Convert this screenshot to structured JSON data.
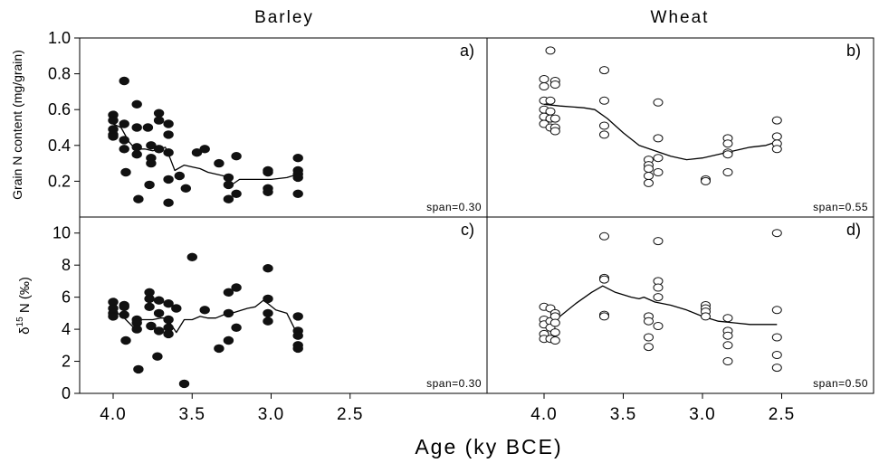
{
  "figure": {
    "x_axis_label": "Age (ky BCE)",
    "columns": [
      "Barley",
      "Wheat"
    ],
    "row_ylabels": [
      "Grain N content (mg/grain)",
      "δ15 N (‰)"
    ],
    "colors": {
      "ink": "#000000",
      "background": "#ffffff"
    }
  },
  "chart_data": [
    {
      "panel": "a)",
      "type": "scatter",
      "crop": "Barley",
      "marker": "filled",
      "span": "span=0.30",
      "xlabel": "Age (ky BCE)",
      "ylabel": "Grain N content (mg/grain)",
      "xlim": [
        4.2,
        2.45
      ],
      "ylim": [
        0,
        1.0
      ],
      "x_reversed": true,
      "yticks": [
        "0.2",
        "0.4",
        "0.6",
        "0.8",
        "1.0"
      ],
      "xticks": [
        "4.0",
        "3.5",
        "3.0",
        "2.5"
      ],
      "points": [
        [
          4.0,
          0.57
        ],
        [
          4.0,
          0.54
        ],
        [
          4.0,
          0.49
        ],
        [
          4.0,
          0.46
        ],
        [
          4.0,
          0.45
        ],
        [
          3.93,
          0.76
        ],
        [
          3.93,
          0.52
        ],
        [
          3.93,
          0.43
        ],
        [
          3.93,
          0.38
        ],
        [
          3.92,
          0.25
        ],
        [
          3.85,
          0.63
        ],
        [
          3.85,
          0.5
        ],
        [
          3.85,
          0.39
        ],
        [
          3.85,
          0.35
        ],
        [
          3.84,
          0.1
        ],
        [
          3.78,
          0.5
        ],
        [
          3.76,
          0.4
        ],
        [
          3.76,
          0.33
        ],
        [
          3.76,
          0.3
        ],
        [
          3.77,
          0.18
        ],
        [
          3.71,
          0.58
        ],
        [
          3.71,
          0.54
        ],
        [
          3.71,
          0.38
        ],
        [
          3.65,
          0.52
        ],
        [
          3.65,
          0.46
        ],
        [
          3.65,
          0.36
        ],
        [
          3.65,
          0.21
        ],
        [
          3.65,
          0.08
        ],
        [
          3.58,
          0.23
        ],
        [
          3.54,
          0.16
        ],
        [
          3.47,
          0.36
        ],
        [
          3.42,
          0.38
        ],
        [
          3.33,
          0.3
        ],
        [
          3.27,
          0.22
        ],
        [
          3.27,
          0.18
        ],
        [
          3.27,
          0.1
        ],
        [
          3.22,
          0.34
        ],
        [
          3.22,
          0.13
        ],
        [
          3.02,
          0.26
        ],
        [
          3.02,
          0.25
        ],
        [
          3.02,
          0.16
        ],
        [
          3.02,
          0.14
        ],
        [
          2.83,
          0.33
        ],
        [
          2.83,
          0.26
        ],
        [
          2.83,
          0.24
        ],
        [
          2.83,
          0.22
        ],
        [
          2.83,
          0.13
        ]
      ],
      "smooth": [
        [
          4.0,
          0.52
        ],
        [
          3.95,
          0.5
        ],
        [
          3.9,
          0.42
        ],
        [
          3.86,
          0.38
        ],
        [
          3.8,
          0.38
        ],
        [
          3.75,
          0.37
        ],
        [
          3.7,
          0.38
        ],
        [
          3.67,
          0.39
        ],
        [
          3.64,
          0.33
        ],
        [
          3.61,
          0.26
        ],
        [
          3.55,
          0.29
        ],
        [
          3.5,
          0.28
        ],
        [
          3.45,
          0.27
        ],
        [
          3.4,
          0.25
        ],
        [
          3.3,
          0.23
        ],
        [
          3.25,
          0.18
        ],
        [
          3.2,
          0.21
        ],
        [
          3.1,
          0.21
        ],
        [
          3.0,
          0.21
        ],
        [
          2.9,
          0.22
        ],
        [
          2.83,
          0.24
        ]
      ]
    },
    {
      "panel": "b)",
      "type": "scatter",
      "crop": "Wheat",
      "marker": "open",
      "span": "span=0.55",
      "xlabel": "Age (ky BCE)",
      "ylabel": "Grain N content (mg/grain)",
      "xlim": [
        4.2,
        2.45
      ],
      "ylim": [
        0,
        1.0
      ],
      "x_reversed": true,
      "yticks": [
        "0.2",
        "0.4",
        "0.6",
        "0.8",
        "1.0"
      ],
      "xticks": [
        "4.0",
        "3.5",
        "3.0",
        "2.5"
      ],
      "points": [
        [
          4.0,
          0.77
        ],
        [
          4.0,
          0.73
        ],
        [
          4.0,
          0.65
        ],
        [
          4.0,
          0.6
        ],
        [
          4.0,
          0.56
        ],
        [
          4.0,
          0.52
        ],
        [
          3.96,
          0.93
        ],
        [
          3.96,
          0.65
        ],
        [
          3.96,
          0.59
        ],
        [
          3.96,
          0.55
        ],
        [
          3.96,
          0.5
        ],
        [
          3.93,
          0.76
        ],
        [
          3.93,
          0.74
        ],
        [
          3.93,
          0.55
        ],
        [
          3.93,
          0.5
        ],
        [
          3.93,
          0.48
        ],
        [
          3.62,
          0.82
        ],
        [
          3.62,
          0.65
        ],
        [
          3.62,
          0.51
        ],
        [
          3.62,
          0.46
        ],
        [
          3.34,
          0.32
        ],
        [
          3.34,
          0.29
        ],
        [
          3.34,
          0.27
        ],
        [
          3.34,
          0.23
        ],
        [
          3.34,
          0.19
        ],
        [
          3.28,
          0.64
        ],
        [
          3.28,
          0.44
        ],
        [
          3.28,
          0.33
        ],
        [
          3.28,
          0.25
        ],
        [
          2.98,
          0.21
        ],
        [
          2.98,
          0.2
        ],
        [
          2.84,
          0.44
        ],
        [
          2.84,
          0.41
        ],
        [
          2.84,
          0.36
        ],
        [
          2.84,
          0.35
        ],
        [
          2.84,
          0.25
        ],
        [
          2.53,
          0.54
        ],
        [
          2.53,
          0.45
        ],
        [
          2.53,
          0.41
        ],
        [
          2.53,
          0.38
        ]
      ],
      "smooth": [
        [
          4.0,
          0.63
        ],
        [
          3.9,
          0.62
        ],
        [
          3.75,
          0.61
        ],
        [
          3.68,
          0.6
        ],
        [
          3.6,
          0.55
        ],
        [
          3.5,
          0.47
        ],
        [
          3.4,
          0.4
        ],
        [
          3.3,
          0.37
        ],
        [
          3.2,
          0.34
        ],
        [
          3.1,
          0.32
        ],
        [
          3.0,
          0.33
        ],
        [
          2.9,
          0.35
        ],
        [
          2.8,
          0.37
        ],
        [
          2.7,
          0.39
        ],
        [
          2.6,
          0.4
        ],
        [
          2.53,
          0.42
        ]
      ]
    },
    {
      "panel": "c)",
      "type": "scatter",
      "crop": "Barley",
      "marker": "filled",
      "span": "span=0.30",
      "xlabel": "Age (ky BCE)",
      "ylabel": "δ15 N (‰)",
      "xlim": [
        4.2,
        2.45
      ],
      "ylim": [
        0,
        11
      ],
      "x_reversed": true,
      "yticks": [
        "0",
        "2",
        "4",
        "6",
        "8",
        "10"
      ],
      "xticks": [
        "4.0",
        "3.5",
        "3.0",
        "2.5"
      ],
      "points": [
        [
          4.0,
          5.7
        ],
        [
          4.0,
          5.3
        ],
        [
          4.0,
          5.0
        ],
        [
          4.0,
          4.8
        ],
        [
          3.93,
          5.5
        ],
        [
          3.93,
          5.4
        ],
        [
          3.93,
          4.9
        ],
        [
          3.92,
          3.3
        ],
        [
          3.85,
          4.6
        ],
        [
          3.85,
          4.4
        ],
        [
          3.85,
          4.0
        ],
        [
          3.84,
          1.5
        ],
        [
          3.77,
          6.3
        ],
        [
          3.77,
          5.9
        ],
        [
          3.77,
          5.4
        ],
        [
          3.76,
          4.2
        ],
        [
          3.71,
          5.8
        ],
        [
          3.71,
          5.0
        ],
        [
          3.71,
          3.9
        ],
        [
          3.72,
          2.3
        ],
        [
          3.65,
          5.6
        ],
        [
          3.65,
          4.6
        ],
        [
          3.65,
          4.1
        ],
        [
          3.65,
          3.7
        ],
        [
          3.6,
          5.3
        ],
        [
          3.55,
          0.6
        ],
        [
          3.5,
          8.5
        ],
        [
          3.42,
          5.2
        ],
        [
          3.33,
          2.8
        ],
        [
          3.27,
          6.3
        ],
        [
          3.27,
          5.0
        ],
        [
          3.27,
          3.3
        ],
        [
          3.22,
          6.6
        ],
        [
          3.22,
          4.1
        ],
        [
          3.02,
          7.8
        ],
        [
          3.02,
          5.9
        ],
        [
          3.02,
          5.0
        ],
        [
          3.02,
          4.5
        ],
        [
          2.83,
          4.8
        ],
        [
          2.83,
          3.9
        ],
        [
          2.83,
          3.6
        ],
        [
          2.83,
          3.0
        ],
        [
          2.83,
          2.8
        ]
      ],
      "smooth": [
        [
          4.0,
          5.1
        ],
        [
          3.95,
          4.9
        ],
        [
          3.9,
          4.4
        ],
        [
          3.86,
          4.0
        ],
        [
          3.82,
          4.6
        ],
        [
          3.75,
          4.6
        ],
        [
          3.7,
          4.7
        ],
        [
          3.66,
          4.7
        ],
        [
          3.62,
          4.1
        ],
        [
          3.6,
          3.8
        ],
        [
          3.55,
          4.6
        ],
        [
          3.5,
          4.6
        ],
        [
          3.45,
          4.8
        ],
        [
          3.4,
          4.7
        ],
        [
          3.35,
          4.7
        ],
        [
          3.3,
          4.9
        ],
        [
          3.25,
          5.0
        ],
        [
          3.15,
          5.3
        ],
        [
          3.1,
          5.4
        ],
        [
          3.05,
          5.8
        ],
        [
          3.02,
          5.6
        ],
        [
          2.97,
          5.2
        ],
        [
          2.9,
          5.0
        ],
        [
          2.85,
          4.0
        ],
        [
          2.83,
          3.8
        ]
      ]
    },
    {
      "panel": "d)",
      "type": "scatter",
      "crop": "Wheat",
      "marker": "open",
      "span": "span=0.50",
      "xlabel": "Age (ky BCE)",
      "ylabel": "δ15 N (‰)",
      "xlim": [
        4.2,
        2.45
      ],
      "ylim": [
        0,
        11
      ],
      "x_reversed": true,
      "yticks": [
        "0",
        "2",
        "4",
        "6",
        "8",
        "10"
      ],
      "xticks": [
        "4.0",
        "3.5",
        "3.0",
        "2.5"
      ],
      "points": [
        [
          4.0,
          5.4
        ],
        [
          4.0,
          4.6
        ],
        [
          4.0,
          4.3
        ],
        [
          4.0,
          3.7
        ],
        [
          4.0,
          3.4
        ],
        [
          3.96,
          5.3
        ],
        [
          3.96,
          4.5
        ],
        [
          3.96,
          4.1
        ],
        [
          3.96,
          3.4
        ],
        [
          3.93,
          5.0
        ],
        [
          3.93,
          4.8
        ],
        [
          3.93,
          4.4
        ],
        [
          3.93,
          3.8
        ],
        [
          3.93,
          3.3
        ],
        [
          3.62,
          9.8
        ],
        [
          3.62,
          7.2
        ],
        [
          3.62,
          7.1
        ],
        [
          3.62,
          4.9
        ],
        [
          3.62,
          4.8
        ],
        [
          3.34,
          4.8
        ],
        [
          3.34,
          4.5
        ],
        [
          3.34,
          3.5
        ],
        [
          3.34,
          2.9
        ],
        [
          3.28,
          9.5
        ],
        [
          3.28,
          7.0
        ],
        [
          3.28,
          6.6
        ],
        [
          3.28,
          6.0
        ],
        [
          3.28,
          4.2
        ],
        [
          2.98,
          5.5
        ],
        [
          2.98,
          5.3
        ],
        [
          2.98,
          5.1
        ],
        [
          2.98,
          4.8
        ],
        [
          2.84,
          4.7
        ],
        [
          2.84,
          3.9
        ],
        [
          2.84,
          3.6
        ],
        [
          2.84,
          3.0
        ],
        [
          2.84,
          2.0
        ],
        [
          2.53,
          10.0
        ],
        [
          2.53,
          5.2
        ],
        [
          2.53,
          3.5
        ],
        [
          2.53,
          2.4
        ],
        [
          2.53,
          1.6
        ]
      ],
      "smooth": [
        [
          4.0,
          4.3
        ],
        [
          3.9,
          4.8
        ],
        [
          3.8,
          5.6
        ],
        [
          3.7,
          6.3
        ],
        [
          3.63,
          6.7
        ],
        [
          3.55,
          6.3
        ],
        [
          3.45,
          6.0
        ],
        [
          3.4,
          5.9
        ],
        [
          3.37,
          6.0
        ],
        [
          3.3,
          5.7
        ],
        [
          3.2,
          5.5
        ],
        [
          3.1,
          5.2
        ],
        [
          3.0,
          4.8
        ],
        [
          2.9,
          4.5
        ],
        [
          2.8,
          4.4
        ],
        [
          2.7,
          4.3
        ],
        [
          2.53,
          4.3
        ]
      ]
    }
  ]
}
